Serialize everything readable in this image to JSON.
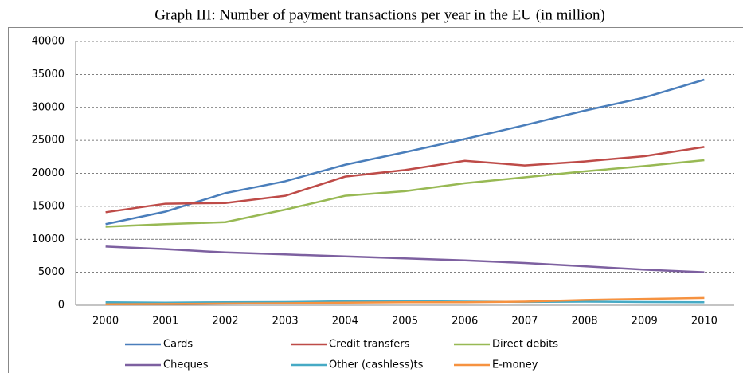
{
  "chart_data": {
    "type": "line",
    "title": "Graph III: Number of payment transactions per year in the EU (in million)",
    "categories": [
      "2000",
      "2001",
      "2002",
      "2003",
      "2004",
      "2005",
      "2006",
      "2007",
      "2008",
      "2009",
      "2010"
    ],
    "ylim": [
      0,
      40000
    ],
    "yticks": [
      0,
      5000,
      10000,
      15000,
      20000,
      25000,
      30000,
      35000,
      40000
    ],
    "grid": true,
    "legend": "bottom",
    "series": [
      {
        "name": "Cards",
        "color": "#4a7ebb",
        "values": [
          12300,
          14200,
          17000,
          18800,
          21300,
          23200,
          25200,
          27300,
          29500,
          31500,
          34200
        ]
      },
      {
        "name": "Credit transfers",
        "color": "#be4b48",
        "values": [
          14100,
          15400,
          15500,
          16600,
          19500,
          20500,
          21900,
          21200,
          21800,
          22600,
          24000
        ]
      },
      {
        "name": "Direct debits",
        "color": "#98b954",
        "values": [
          11900,
          12300,
          12600,
          14500,
          16600,
          17300,
          18500,
          19400,
          20300,
          21100,
          22000
        ]
      },
      {
        "name": "Cheques",
        "color": "#7d60a0",
        "values": [
          8900,
          8500,
          8000,
          7700,
          7400,
          7100,
          6800,
          6400,
          5900,
          5400,
          5000
        ]
      },
      {
        "name": "Other (cashless)ts",
        "color": "#46aac5",
        "values": [
          450,
          400,
          450,
          480,
          600,
          620,
          550,
          500,
          550,
          480,
          450
        ]
      },
      {
        "name": "E-money",
        "color": "#f69240",
        "values": [
          150,
          200,
          250,
          300,
          400,
          450,
          450,
          550,
          800,
          950,
          1100
        ]
      }
    ]
  }
}
